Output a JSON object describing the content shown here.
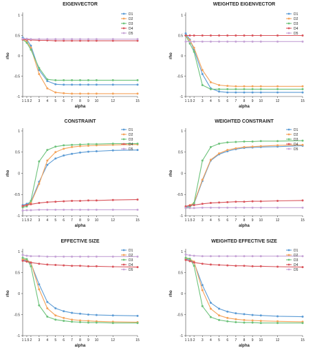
{
  "figure": {
    "colors": {
      "D1": "#5b9bd5",
      "D2": "#f4a259",
      "D3": "#6cc27a",
      "D4": "#d9545b",
      "D5": "#c5a3d6"
    }
  },
  "chart_data": [
    {
      "type": "line",
      "title": "EIGENVECTOR",
      "xlabel": "alpha",
      "ylabel": "rho",
      "x": [
        1,
        1.5,
        2,
        3,
        4,
        5,
        6,
        7,
        8,
        9,
        10,
        12,
        15
      ],
      "xticks": [
        "1",
        "1.5",
        "2",
        "3",
        "4",
        "5",
        "6",
        "7",
        "8",
        "9",
        "10",
        "12",
        "15"
      ],
      "ylim": [
        -1,
        1
      ],
      "yticks": [
        "-1",
        "-0.5",
        "0",
        "0.5",
        "1"
      ],
      "legend": "right",
      "series": [
        {
          "name": "D1",
          "values": [
            0.45,
            0.4,
            0.25,
            -0.35,
            -0.62,
            -0.7,
            -0.71,
            -0.71,
            -0.71,
            -0.71,
            -0.71,
            -0.71,
            -0.71
          ]
        },
        {
          "name": "D2",
          "values": [
            0.42,
            0.35,
            0.2,
            -0.45,
            -0.8,
            -0.9,
            -0.92,
            -0.93,
            -0.93,
            -0.93,
            -0.93,
            -0.93,
            -0.93
          ]
        },
        {
          "name": "D3",
          "values": [
            0.4,
            0.32,
            0.15,
            -0.3,
            -0.58,
            -0.6,
            -0.6,
            -0.6,
            -0.6,
            -0.6,
            -0.6,
            -0.6,
            -0.6
          ]
        },
        {
          "name": "D4",
          "values": [
            0.4,
            0.4,
            0.39,
            0.38,
            0.38,
            0.37,
            0.37,
            0.37,
            0.37,
            0.37,
            0.37,
            0.37,
            0.37
          ]
        },
        {
          "name": "D5",
          "values": [
            0.42,
            0.42,
            0.41,
            0.41,
            0.41,
            0.41,
            0.41,
            0.41,
            0.41,
            0.41,
            0.41,
            0.41,
            0.41
          ]
        }
      ]
    },
    {
      "type": "line",
      "title": "WEIGHTED EIGENVECTOR",
      "xlabel": "alpha",
      "ylabel": "rho",
      "x": [
        1,
        1.5,
        2,
        3,
        4,
        5,
        6,
        7,
        8,
        9,
        10,
        12,
        15
      ],
      "xticks": [
        "1",
        "1.5",
        "2",
        "3",
        "4",
        "5",
        "6",
        "7",
        "8",
        "9",
        "10",
        "12",
        "15"
      ],
      "ylim": [
        -1,
        1
      ],
      "yticks": [
        "-1",
        "-0.5",
        "0",
        "0.5",
        "1"
      ],
      "legend": "right",
      "series": [
        {
          "name": "D1",
          "values": [
            0.55,
            0.4,
            0.15,
            -0.45,
            -0.8,
            -0.88,
            -0.9,
            -0.9,
            -0.9,
            -0.9,
            -0.9,
            -0.9,
            -0.9
          ]
        },
        {
          "name": "D2",
          "values": [
            0.5,
            0.38,
            0.2,
            -0.35,
            -0.65,
            -0.72,
            -0.74,
            -0.75,
            -0.75,
            -0.75,
            -0.75,
            -0.75,
            -0.75
          ]
        },
        {
          "name": "D3",
          "values": [
            0.5,
            0.3,
            0.1,
            -0.72,
            -0.82,
            -0.82,
            -0.82,
            -0.82,
            -0.82,
            -0.82,
            -0.82,
            -0.82,
            -0.82
          ]
        },
        {
          "name": "D4",
          "values": [
            0.5,
            0.5,
            0.5,
            0.5,
            0.5,
            0.5,
            0.5,
            0.5,
            0.5,
            0.5,
            0.5,
            0.5,
            0.5
          ]
        },
        {
          "name": "D5",
          "values": [
            0.35,
            0.35,
            0.35,
            0.35,
            0.35,
            0.35,
            0.35,
            0.35,
            0.35,
            0.35,
            0.35,
            0.35,
            0.35
          ]
        }
      ]
    },
    {
      "type": "line",
      "title": "CONSTRAINT",
      "xlabel": "alpha",
      "ylabel": "rho",
      "x": [
        1,
        1.5,
        2,
        3,
        4,
        5,
        6,
        7,
        8,
        9,
        10,
        12,
        15
      ],
      "xticks": [
        "1",
        "1.5",
        "2",
        "3",
        "4",
        "5",
        "6",
        "7",
        "8",
        "9",
        "10",
        "12",
        "15"
      ],
      "ylim": [
        -1,
        1
      ],
      "yticks": [
        "-1",
        "-0.5",
        "0",
        "0.5",
        "1"
      ],
      "legend": "right",
      "series": [
        {
          "name": "D1",
          "values": [
            -0.75,
            -0.72,
            -0.68,
            -0.2,
            0.2,
            0.35,
            0.42,
            0.46,
            0.49,
            0.51,
            0.52,
            0.54,
            0.55
          ]
        },
        {
          "name": "D2",
          "values": [
            -0.78,
            -0.75,
            -0.7,
            -0.25,
            0.3,
            0.5,
            0.58,
            0.62,
            0.64,
            0.65,
            0.66,
            0.67,
            0.68
          ]
        },
        {
          "name": "D3",
          "values": [
            -0.8,
            -0.78,
            -0.65,
            0.28,
            0.55,
            0.63,
            0.66,
            0.67,
            0.68,
            0.69,
            0.69,
            0.7,
            0.7
          ]
        },
        {
          "name": "D4",
          "values": [
            -0.77,
            -0.75,
            -0.73,
            -0.7,
            -0.68,
            -0.67,
            -0.66,
            -0.65,
            -0.65,
            -0.64,
            -0.64,
            -0.63,
            -0.62
          ]
        },
        {
          "name": "D5",
          "values": [
            -0.88,
            -0.87,
            -0.87,
            -0.86,
            -0.86,
            -0.86,
            -0.86,
            -0.86,
            -0.86,
            -0.86,
            -0.86,
            -0.86,
            -0.86
          ]
        }
      ]
    },
    {
      "type": "line",
      "title": "WEIGHTED CONSTRAINT",
      "xlabel": "alpha",
      "ylabel": "rho",
      "x": [
        1,
        1.5,
        2,
        3,
        4,
        5,
        6,
        7,
        8,
        9,
        10,
        12,
        15
      ],
      "xticks": [
        "1",
        "1.5",
        "2",
        "3",
        "4",
        "5",
        "6",
        "7",
        "8",
        "9",
        "10",
        "12",
        "15"
      ],
      "ylim": [
        -1,
        1
      ],
      "yticks": [
        "-1",
        "-0.5",
        "0",
        "0.5",
        "1"
      ],
      "legend": "right",
      "series": [
        {
          "name": "D1",
          "values": [
            -0.8,
            -0.77,
            -0.72,
            -0.18,
            0.3,
            0.45,
            0.52,
            0.57,
            0.6,
            0.61,
            0.62,
            0.63,
            0.65
          ]
        },
        {
          "name": "D2",
          "values": [
            -0.78,
            -0.75,
            -0.7,
            -0.15,
            0.32,
            0.47,
            0.55,
            0.59,
            0.62,
            0.63,
            0.64,
            0.66,
            0.67
          ]
        },
        {
          "name": "D3",
          "values": [
            -0.82,
            -0.8,
            -0.7,
            0.3,
            0.62,
            0.7,
            0.73,
            0.74,
            0.75,
            0.75,
            0.76,
            0.76,
            0.77
          ]
        },
        {
          "name": "D4",
          "values": [
            -0.78,
            -0.76,
            -0.75,
            -0.72,
            -0.7,
            -0.69,
            -0.68,
            -0.67,
            -0.67,
            -0.66,
            -0.66,
            -0.65,
            -0.64
          ]
        },
        {
          "name": "D5",
          "values": [
            -0.82,
            -0.82,
            -0.82,
            -0.81,
            -0.81,
            -0.81,
            -0.81,
            -0.81,
            -0.81,
            -0.81,
            -0.81,
            -0.81,
            -0.81
          ]
        }
      ]
    },
    {
      "type": "line",
      "title": "EFFECTIVE SIZE",
      "xlabel": "alpha",
      "ylabel": "rho",
      "x": [
        1,
        1.5,
        2,
        3,
        4,
        5,
        6,
        7,
        8,
        9,
        10,
        12,
        15
      ],
      "xticks": [
        "1",
        "1.5",
        "2",
        "3",
        "4",
        "5",
        "6",
        "7",
        "8",
        "9",
        "10",
        "12",
        "15"
      ],
      "ylim": [
        -1,
        1
      ],
      "yticks": [
        "-1",
        "-0.5",
        "0",
        "0.5",
        "1"
      ],
      "legend": "right",
      "series": [
        {
          "name": "D1",
          "values": [
            0.8,
            0.78,
            0.72,
            0.22,
            -0.2,
            -0.35,
            -0.42,
            -0.46,
            -0.48,
            -0.5,
            -0.51,
            -0.52,
            -0.53
          ]
        },
        {
          "name": "D2",
          "values": [
            0.82,
            0.8,
            0.74,
            0.1,
            -0.35,
            -0.52,
            -0.58,
            -0.62,
            -0.64,
            -0.65,
            -0.66,
            -0.67,
            -0.68
          ]
        },
        {
          "name": "D3",
          "values": [
            0.85,
            0.82,
            0.65,
            -0.28,
            -0.55,
            -0.62,
            -0.65,
            -0.67,
            -0.68,
            -0.69,
            -0.69,
            -0.7,
            -0.7
          ]
        },
        {
          "name": "D4",
          "values": [
            0.78,
            0.76,
            0.74,
            0.71,
            0.69,
            0.68,
            0.67,
            0.66,
            0.66,
            0.65,
            0.65,
            0.64,
            0.63
          ]
        },
        {
          "name": "D5",
          "values": [
            0.92,
            0.9,
            0.89,
            0.89,
            0.88,
            0.88,
            0.88,
            0.88,
            0.88,
            0.88,
            0.88,
            0.88,
            0.88
          ]
        }
      ]
    },
    {
      "type": "line",
      "title": "WEIGHTED EFFECTIVE SIZE",
      "xlabel": "alpha",
      "ylabel": "rho",
      "x": [
        1,
        1.5,
        2,
        3,
        4,
        5,
        6,
        7,
        8,
        9,
        10,
        12,
        15
      ],
      "xticks": [
        "1",
        "1.5",
        "2",
        "3",
        "4",
        "5",
        "6",
        "7",
        "8",
        "9",
        "10",
        "12",
        "15"
      ],
      "ylim": [
        -1,
        1
      ],
      "yticks": [
        "-1",
        "-0.5",
        "0",
        "0.5",
        "1"
      ],
      "legend": "right",
      "series": [
        {
          "name": "D1",
          "values": [
            0.82,
            0.8,
            0.74,
            0.2,
            -0.22,
            -0.36,
            -0.43,
            -0.47,
            -0.49,
            -0.51,
            -0.52,
            -0.54,
            -0.55
          ]
        },
        {
          "name": "D2",
          "values": [
            0.84,
            0.82,
            0.76,
            0.08,
            -0.36,
            -0.52,
            -0.58,
            -0.61,
            -0.63,
            -0.64,
            -0.65,
            -0.66,
            -0.67
          ]
        },
        {
          "name": "D3",
          "values": [
            0.85,
            0.83,
            0.66,
            -0.3,
            -0.56,
            -0.63,
            -0.66,
            -0.68,
            -0.69,
            -0.69,
            -0.7,
            -0.7,
            -0.7
          ]
        },
        {
          "name": "D4",
          "values": [
            0.8,
            0.77,
            0.74,
            0.71,
            0.69,
            0.68,
            0.67,
            0.66,
            0.66,
            0.65,
            0.65,
            0.64,
            0.63
          ]
        },
        {
          "name": "D5",
          "values": [
            0.93,
            0.91,
            0.9,
            0.89,
            0.89,
            0.89,
            0.89,
            0.89,
            0.89,
            0.89,
            0.89,
            0.89,
            0.89
          ]
        }
      ]
    }
  ]
}
